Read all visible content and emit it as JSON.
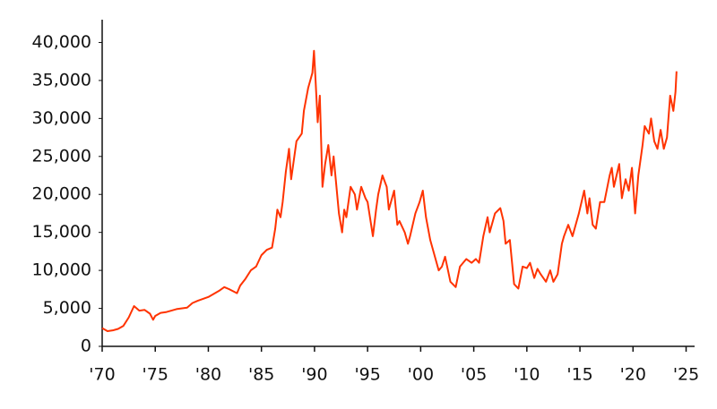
{
  "chart_data": {
    "type": "line",
    "x": [
      1970,
      1970.5,
      1971,
      1971.5,
      1972,
      1972.5,
      1973,
      1973.5,
      1974,
      1974.5,
      1974.8,
      1975,
      1975.5,
      1976,
      1977,
      1978,
      1978.5,
      1979,
      1980,
      1981,
      1981.5,
      1982,
      1982.7,
      1983,
      1983.5,
      1984,
      1984.5,
      1985,
      1985.5,
      1986,
      1986.3,
      1986.5,
      1986.8,
      1987,
      1987.3,
      1987.6,
      1987.8,
      1988,
      1988.3,
      1988.8,
      1989,
      1989.4,
      1989.8,
      1989.95,
      1990.1,
      1990.3,
      1990.5,
      1990.75,
      1991,
      1991.3,
      1991.6,
      1991.8,
      1992,
      1992.3,
      1992.6,
      1992.8,
      1993,
      1993.4,
      1993.8,
      1994,
      1994.4,
      1994.8,
      1995,
      1995.5,
      1995.8,
      1996,
      1996.4,
      1996.8,
      1997,
      1997.5,
      1997.8,
      1998,
      1998.5,
      1998.8,
      1999,
      1999.5,
      1999.9,
      2000.2,
      2000.5,
      2000.9,
      2001.2,
      2001.7,
      2002,
      2002.3,
      2002.8,
      2003.3,
      2003.7,
      2004.3,
      2004.8,
      2005.2,
      2005.5,
      2005.9,
      2006.3,
      2006.5,
      2007,
      2007.5,
      2007.8,
      2008,
      2008.4,
      2008.8,
      2009.2,
      2009.6,
      2010,
      2010.3,
      2010.7,
      2011,
      2011.3,
      2011.8,
      2012.2,
      2012.5,
      2012.9,
      2013.3,
      2013.5,
      2013.9,
      2014.3,
      2014.9,
      2015.4,
      2015.7,
      2015.9,
      2016.2,
      2016.5,
      2016.9,
      2017.3,
      2017.8,
      2018,
      2018.2,
      2018.7,
      2018.95,
      2019.3,
      2019.6,
      2019.9,
      2020.2,
      2020.5,
      2020.9,
      2021.1,
      2021.5,
      2021.7,
      2022,
      2022.3,
      2022.6,
      2022.9,
      2023.2,
      2023.5,
      2023.8,
      2024,
      2024.1
    ],
    "values": [
      2400,
      2000,
      2100,
      2300,
      2700,
      3800,
      5300,
      4700,
      4800,
      4300,
      3500,
      4000,
      4400,
      4500,
      4900,
      5100,
      5700,
      6000,
      6500,
      7300,
      7800,
      7500,
      7000,
      8000,
      8900,
      10000,
      10500,
      12000,
      12700,
      13000,
      15500,
      18000,
      17000,
      19000,
      23000,
      26000,
      22000,
      24000,
      27000,
      28000,
      31000,
      34000,
      36000,
      38900,
      35000,
      29500,
      33000,
      21000,
      24000,
      26500,
      22500,
      25000,
      22000,
      17500,
      15000,
      18000,
      17000,
      21000,
      20000,
      18000,
      21000,
      19500,
      19000,
      14500,
      18000,
      20000,
      22500,
      21000,
      18000,
      20500,
      16000,
      16500,
      15000,
      13500,
      14500,
      17500,
      19000,
      20500,
      17000,
      14000,
      12500,
      10000,
      10500,
      11800,
      8500,
      7800,
      10500,
      11500,
      11000,
      11500,
      11000,
      14500,
      17000,
      15000,
      17500,
      18200,
      16500,
      13500,
      14000,
      8200,
      7600,
      10500,
      10300,
      11000,
      9000,
      10200,
      9500,
      8500,
      10000,
      8500,
      9500,
      13500,
      14500,
      16000,
      14500,
      17500,
      20500,
      17500,
      19500,
      16000,
      15500,
      19000,
      19000,
      22500,
      23500,
      21000,
      24000,
      19500,
      22000,
      20500,
      23500,
      17500,
      22500,
      26500,
      29000,
      28000,
      30000,
      27000,
      26000,
      28500,
      26000,
      27500,
      33000,
      31000,
      33500,
      36200
    ],
    "color": "#ff3300",
    "xlim": [
      1970,
      2025.8
    ],
    "xticks": [
      {
        "value": 1970,
        "label": "'70"
      },
      {
        "value": 1975,
        "label": "'75"
      },
      {
        "value": 1980,
        "label": "'80"
      },
      {
        "value": 1985,
        "label": "'85"
      },
      {
        "value": 1990,
        "label": "'90"
      },
      {
        "value": 1995,
        "label": "'95"
      },
      {
        "value": 2000,
        "label": "'00"
      },
      {
        "value": 2005,
        "label": "'05"
      },
      {
        "value": 2010,
        "label": "'10"
      },
      {
        "value": 2015,
        "label": "'15"
      },
      {
        "value": 2020,
        "label": "'20"
      },
      {
        "value": 2025,
        "label": "'25"
      }
    ],
    "ylim": [
      0,
      43000
    ],
    "yticks": [
      0,
      {
        "value": 5000,
        "label": "5,000"
      },
      {
        "value": 10000,
        "label": "10,000"
      },
      {
        "value": 15000,
        "label": "15,000"
      },
      {
        "value": 20000,
        "label": "20,000"
      },
      {
        "value": 25000,
        "label": "25,000"
      },
      {
        "value": 30000,
        "label": "30,000"
      },
      {
        "value": 35000,
        "label": "35,000"
      },
      {
        "value": 40000,
        "label": "40,000"
      }
    ],
    "grid": false
  }
}
